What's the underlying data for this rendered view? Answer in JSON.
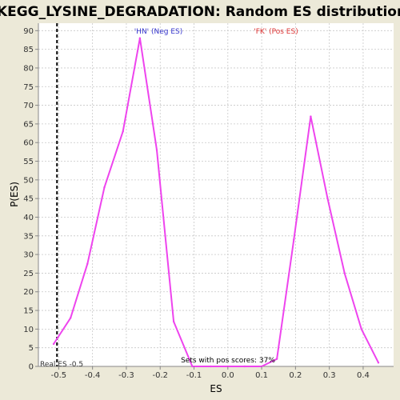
{
  "chart_data": {
    "type": "line",
    "title": "KEGG_LYSINE_DEGRADATION: Random ES distribution",
    "xlabel": "ES",
    "ylabel": "P(ES)",
    "xlim": [
      -0.56,
      0.49
    ],
    "ylim": [
      0,
      92
    ],
    "x_ticks": [
      -0.5,
      -0.4,
      -0.3,
      -0.2,
      -0.1,
      0.0,
      0.1,
      0.2,
      0.3,
      0.4
    ],
    "x_tick_labels": [
      "-0.5",
      "-0.4",
      "-0.3",
      "-0.2",
      "-0.1",
      "0.0",
      "0.1",
      "0.2",
      "0.3",
      "0.4"
    ],
    "y_ticks": [
      0,
      5,
      10,
      15,
      20,
      25,
      30,
      35,
      40,
      45,
      50,
      55,
      60,
      65,
      70,
      75,
      80,
      85,
      90
    ],
    "y_tick_labels": [
      "0",
      "5",
      "10",
      "15",
      "20",
      "25",
      "30",
      "35",
      "40",
      "45",
      "50",
      "55",
      "60",
      "65",
      "70",
      "75",
      "80",
      "85",
      "90"
    ],
    "grid": true,
    "series": [
      {
        "color": "#EE44EE",
        "x": [
          -0.515,
          -0.465,
          -0.415,
          -0.365,
          -0.31,
          -0.26,
          -0.21,
          -0.16,
          -0.105,
          -0.05,
          0.0,
          0.05,
          0.1,
          0.145,
          0.195,
          0.245,
          0.295,
          0.345,
          0.395,
          0.445
        ],
        "y": [
          6,
          13,
          27.5,
          48,
          63,
          88,
          58,
          12,
          0,
          0,
          0,
          0,
          0,
          2,
          34,
          67,
          45,
          25,
          10,
          1
        ]
      }
    ],
    "real_es": {
      "value": -0.505,
      "label": "Real ES -0.5"
    },
    "annotations": {
      "neg_label": "'HN' (Neg ES)",
      "pos_label": "'FK' (Pos ES)",
      "pos_scores": "Sets with pos scores: 37%"
    },
    "colors": {
      "neg": "#3333CC",
      "pos": "#DD3333",
      "plot_bg": "#FFFFFF",
      "page_bg": "#ECE9D8",
      "grid": "#C8C8C8"
    }
  }
}
